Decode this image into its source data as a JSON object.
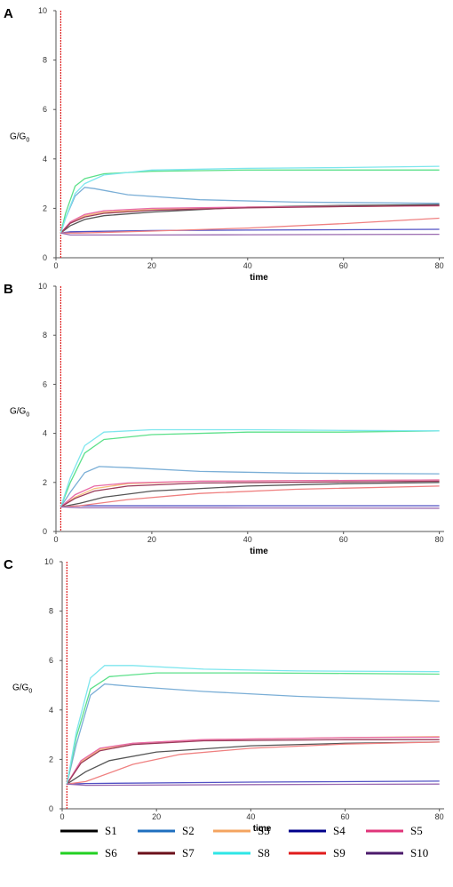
{
  "chart_data": [
    {
      "type": "line",
      "panel_label": "A",
      "xlabel": "time",
      "ylabel": "G/G",
      "ylabel_sub": "0",
      "xlim": [
        0,
        81
      ],
      "ylim": [
        0,
        10
      ],
      "x_ticks": [
        0,
        20,
        40,
        60,
        80
      ],
      "y_ticks": [
        0,
        2,
        4,
        6,
        8,
        10
      ],
      "marker_line_x": 1,
      "series": [
        {
          "name": "S1",
          "points": [
            [
              1,
              1.0
            ],
            [
              3,
              1.3
            ],
            [
              6,
              1.55
            ],
            [
              10,
              1.7
            ],
            [
              20,
              1.85
            ],
            [
              40,
              2.05
            ],
            [
              60,
              2.12
            ],
            [
              80,
              2.15
            ]
          ]
        },
        {
          "name": "S2",
          "points": [
            [
              1,
              1.0
            ],
            [
              2,
              1.6
            ],
            [
              4,
              2.5
            ],
            [
              6,
              2.85
            ],
            [
              8,
              2.8
            ],
            [
              15,
              2.55
            ],
            [
              30,
              2.35
            ],
            [
              50,
              2.25
            ],
            [
              80,
              2.2
            ]
          ]
        },
        {
          "name": "S3",
          "points": [
            [
              1,
              1.0
            ],
            [
              3,
              1.4
            ],
            [
              6,
              1.7
            ],
            [
              10,
              1.85
            ],
            [
              20,
              1.95
            ],
            [
              40,
              2.05
            ],
            [
              80,
              2.1
            ]
          ]
        },
        {
          "name": "S4",
          "points": [
            [
              1,
              1.0
            ],
            [
              3,
              1.05
            ],
            [
              20,
              1.1
            ],
            [
              40,
              1.12
            ],
            [
              80,
              1.15
            ]
          ]
        },
        {
          "name": "S5",
          "points": [
            [
              1,
              1.0
            ],
            [
              3,
              1.45
            ],
            [
              6,
              1.75
            ],
            [
              10,
              1.9
            ],
            [
              20,
              2.0
            ],
            [
              40,
              2.05
            ],
            [
              80,
              2.1
            ]
          ]
        },
        {
          "name": "S6",
          "points": [
            [
              1,
              1.0
            ],
            [
              2,
              1.8
            ],
            [
              4,
              2.9
            ],
            [
              6,
              3.2
            ],
            [
              10,
              3.4
            ],
            [
              20,
              3.5
            ],
            [
              40,
              3.55
            ],
            [
              60,
              3.55
            ],
            [
              80,
              3.55
            ]
          ]
        },
        {
          "name": "S7",
          "points": [
            [
              1,
              1.0
            ],
            [
              3,
              1.4
            ],
            [
              6,
              1.65
            ],
            [
              10,
              1.8
            ],
            [
              20,
              1.92
            ],
            [
              40,
              2.02
            ],
            [
              80,
              2.12
            ]
          ]
        },
        {
          "name": "S8",
          "points": [
            [
              1,
              1.0
            ],
            [
              2,
              1.6
            ],
            [
              4,
              2.6
            ],
            [
              6,
              3.0
            ],
            [
              10,
              3.35
            ],
            [
              20,
              3.55
            ],
            [
              40,
              3.62
            ],
            [
              60,
              3.65
            ],
            [
              80,
              3.7
            ]
          ]
        },
        {
          "name": "S9",
          "points": [
            [
              1,
              1.0
            ],
            [
              5,
              1.0
            ],
            [
              20,
              1.08
            ],
            [
              40,
              1.2
            ],
            [
              60,
              1.38
            ],
            [
              80,
              1.6
            ]
          ]
        },
        {
          "name": "S10",
          "points": [
            [
              1,
              1.0
            ],
            [
              3,
              0.92
            ],
            [
              20,
              0.92
            ],
            [
              40,
              0.93
            ],
            [
              80,
              0.95
            ]
          ]
        }
      ]
    },
    {
      "type": "line",
      "panel_label": "B",
      "xlabel": "time",
      "ylabel": "G/G",
      "ylabel_sub": "0",
      "xlim": [
        0,
        81
      ],
      "ylim": [
        0,
        10
      ],
      "x_ticks": [
        0,
        20,
        40,
        60,
        80
      ],
      "y_ticks": [
        0,
        2,
        4,
        6,
        8,
        10
      ],
      "marker_line_x": 1,
      "series": [
        {
          "name": "S1",
          "points": [
            [
              1,
              1.0
            ],
            [
              5,
              1.15
            ],
            [
              10,
              1.4
            ],
            [
              20,
              1.65
            ],
            [
              40,
              1.85
            ],
            [
              60,
              1.95
            ],
            [
              80,
              2.0
            ]
          ]
        },
        {
          "name": "S2",
          "points": [
            [
              1,
              1.0
            ],
            [
              3,
              1.6
            ],
            [
              6,
              2.4
            ],
            [
              9,
              2.65
            ],
            [
              15,
              2.6
            ],
            [
              30,
              2.45
            ],
            [
              50,
              2.38
            ],
            [
              80,
              2.35
            ]
          ]
        },
        {
          "name": "S3",
          "points": [
            [
              1,
              1.0
            ],
            [
              4,
              1.4
            ],
            [
              8,
              1.75
            ],
            [
              15,
              1.95
            ],
            [
              30,
              2.05
            ],
            [
              80,
              2.1
            ]
          ]
        },
        {
          "name": "S4",
          "points": [
            [
              1,
              1.0
            ],
            [
              5,
              1.05
            ],
            [
              40,
              1.05
            ],
            [
              80,
              1.05
            ]
          ]
        },
        {
          "name": "S5",
          "points": [
            [
              1,
              1.0
            ],
            [
              4,
              1.5
            ],
            [
              8,
              1.85
            ],
            [
              15,
              1.98
            ],
            [
              30,
              2.05
            ],
            [
              80,
              2.1
            ]
          ]
        },
        {
          "name": "S6",
          "points": [
            [
              1,
              1.0
            ],
            [
              3,
              2.0
            ],
            [
              6,
              3.2
            ],
            [
              10,
              3.75
            ],
            [
              20,
              3.95
            ],
            [
              40,
              4.05
            ],
            [
              60,
              4.05
            ],
            [
              80,
              4.1
            ]
          ]
        },
        {
          "name": "S7",
          "points": [
            [
              1,
              1.0
            ],
            [
              4,
              1.35
            ],
            [
              8,
              1.65
            ],
            [
              15,
              1.85
            ],
            [
              30,
              1.98
            ],
            [
              80,
              2.05
            ]
          ]
        },
        {
          "name": "S8",
          "points": [
            [
              1,
              1.0
            ],
            [
              3,
              2.2
            ],
            [
              6,
              3.5
            ],
            [
              10,
              4.05
            ],
            [
              20,
              4.15
            ],
            [
              40,
              4.15
            ],
            [
              60,
              4.12
            ],
            [
              80,
              4.1
            ]
          ]
        },
        {
          "name": "S9",
          "points": [
            [
              1,
              1.0
            ],
            [
              5,
              1.05
            ],
            [
              15,
              1.3
            ],
            [
              30,
              1.55
            ],
            [
              50,
              1.72
            ],
            [
              80,
              1.85
            ]
          ]
        },
        {
          "name": "S10",
          "points": [
            [
              1,
              1.0
            ],
            [
              5,
              0.97
            ],
            [
              40,
              0.96
            ],
            [
              80,
              0.95
            ]
          ]
        }
      ]
    },
    {
      "type": "line",
      "panel_label": "C",
      "xlabel": "time",
      "ylabel": "G/G",
      "ylabel_sub": "0",
      "xlim": [
        0,
        81
      ],
      "ylim": [
        0,
        10
      ],
      "x_ticks": [
        0,
        20,
        40,
        60,
        80
      ],
      "y_ticks": [
        0,
        2,
        4,
        6,
        8,
        10
      ],
      "marker_line_x": 1,
      "series": [
        {
          "name": "S1",
          "points": [
            [
              1,
              1.0
            ],
            [
              5,
              1.5
            ],
            [
              10,
              1.95
            ],
            [
              20,
              2.3
            ],
            [
              40,
              2.55
            ],
            [
              60,
              2.65
            ],
            [
              80,
              2.7
            ]
          ]
        },
        {
          "name": "S2",
          "points": [
            [
              1,
              1.0
            ],
            [
              3,
              2.6
            ],
            [
              6,
              4.6
            ],
            [
              9,
              5.05
            ],
            [
              15,
              4.95
            ],
            [
              30,
              4.75
            ],
            [
              50,
              4.55
            ],
            [
              80,
              4.35
            ]
          ]
        },
        {
          "name": "S3",
          "points": [
            [
              1,
              1.0
            ],
            [
              4,
              1.9
            ],
            [
              8,
              2.4
            ],
            [
              15,
              2.65
            ],
            [
              30,
              2.8
            ],
            [
              60,
              2.88
            ],
            [
              80,
              2.92
            ]
          ]
        },
        {
          "name": "S4",
          "points": [
            [
              1,
              1.0
            ],
            [
              5,
              1.02
            ],
            [
              40,
              1.08
            ],
            [
              80,
              1.12
            ]
          ]
        },
        {
          "name": "S5",
          "points": [
            [
              1,
              1.0
            ],
            [
              4,
              1.95
            ],
            [
              8,
              2.45
            ],
            [
              15,
              2.65
            ],
            [
              30,
              2.8
            ],
            [
              60,
              2.88
            ],
            [
              80,
              2.9
            ]
          ]
        },
        {
          "name": "S6",
          "points": [
            [
              1,
              1.0
            ],
            [
              3,
              2.9
            ],
            [
              6,
              4.85
            ],
            [
              10,
              5.35
            ],
            [
              20,
              5.5
            ],
            [
              40,
              5.5
            ],
            [
              60,
              5.48
            ],
            [
              80,
              5.45
            ]
          ]
        },
        {
          "name": "S7",
          "points": [
            [
              1,
              1.0
            ],
            [
              4,
              1.85
            ],
            [
              8,
              2.35
            ],
            [
              15,
              2.6
            ],
            [
              30,
              2.75
            ],
            [
              60,
              2.8
            ],
            [
              80,
              2.8
            ]
          ]
        },
        {
          "name": "S8",
          "points": [
            [
              1,
              1.0
            ],
            [
              3,
              3.1
            ],
            [
              6,
              5.3
            ],
            [
              9,
              5.8
            ],
            [
              15,
              5.8
            ],
            [
              30,
              5.65
            ],
            [
              50,
              5.58
            ],
            [
              80,
              5.55
            ]
          ]
        },
        {
          "name": "S9",
          "points": [
            [
              1,
              1.0
            ],
            [
              5,
              1.1
            ],
            [
              15,
              1.8
            ],
            [
              25,
              2.2
            ],
            [
              40,
              2.45
            ],
            [
              60,
              2.62
            ],
            [
              80,
              2.7
            ]
          ]
        },
        {
          "name": "S10",
          "points": [
            [
              1,
              1.0
            ],
            [
              5,
              0.95
            ],
            [
              40,
              0.98
            ],
            [
              80,
              1.0
            ]
          ]
        }
      ]
    }
  ],
  "legend": {
    "items": [
      {
        "name": "S1",
        "color": "#000000"
      },
      {
        "name": "S2",
        "color": "#1f6fbf"
      },
      {
        "name": "S3",
        "color": "#f4a460"
      },
      {
        "name": "S4",
        "color": "#00008b"
      },
      {
        "name": "S5",
        "color": "#e0357a"
      },
      {
        "name": "S6",
        "color": "#22d022"
      },
      {
        "name": "S7",
        "color": "#6b0f1a"
      },
      {
        "name": "S8",
        "color": "#2ee6e6"
      },
      {
        "name": "S9",
        "color": "#e01b1b"
      },
      {
        "name": "S10",
        "color": "#4b1a6b"
      }
    ]
  },
  "plot_line_colors": {
    "S1": "#555555",
    "S2": "#7aaed6",
    "S3": "#f6c07a",
    "S4": "#5151c4",
    "S5": "#e86aa8",
    "S6": "#5ce08a",
    "S7": "#9a3a5a",
    "S8": "#7ee6ee",
    "S9": "#ef8080",
    "S10": "#9a6ab0"
  },
  "colors": {
    "axis": "#555555",
    "marker_line": "#e02020"
  }
}
